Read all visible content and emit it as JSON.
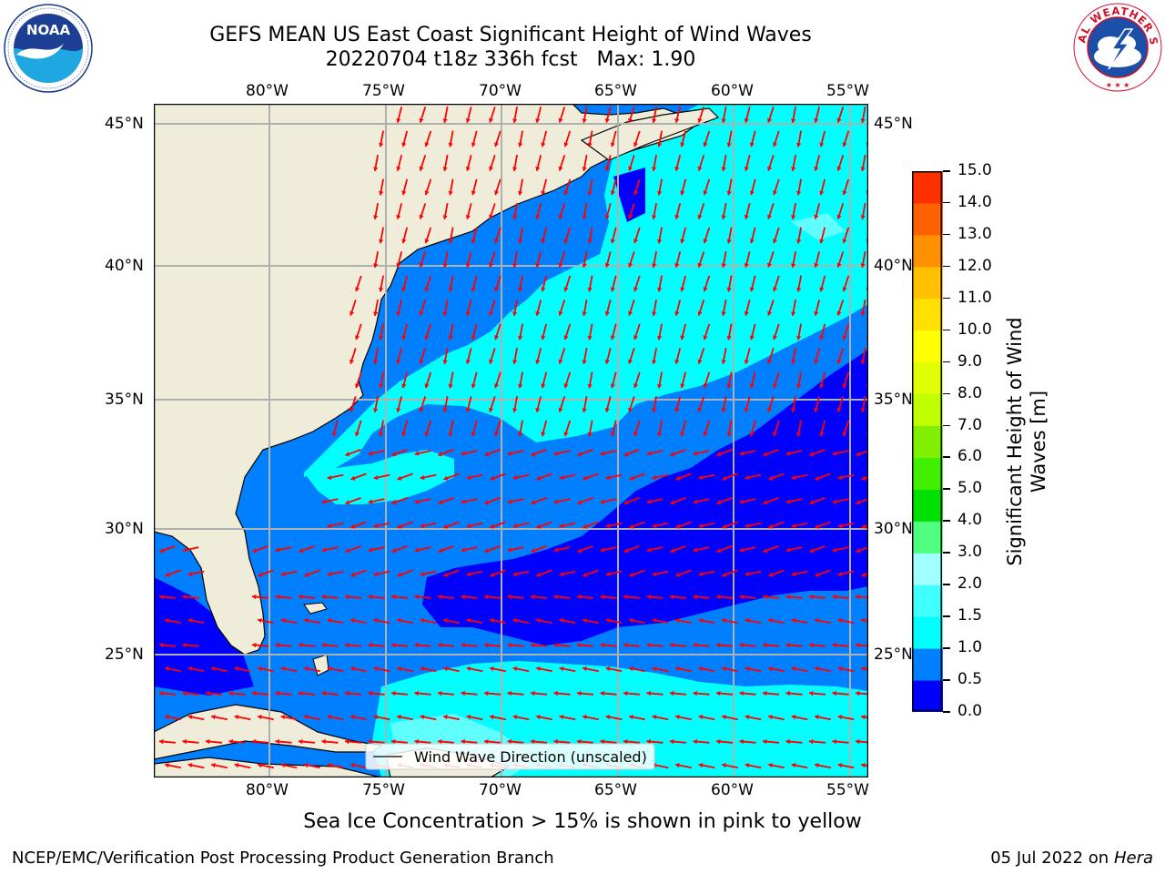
{
  "header": {
    "title_line1": "GEFS MEAN US East Coast Significant Height of Wind Waves",
    "title_line2": "20220704 t18z 336h fcst   Max: 1.90"
  },
  "logos": {
    "left": {
      "text": "NOAA",
      "ring_text": "NATIONAL OCEANIC AND ATMOSPHERIC ADMINISTRATION · U.S. DEPARTMENT OF COMMERCE",
      "icon": "noaa-logo"
    },
    "right": {
      "ring_text": "NATIONAL WEATHER SERVICE",
      "icon": "nws-logo"
    }
  },
  "map": {
    "lon_labels": [
      "80°W",
      "75°W",
      "70°W",
      "65°W",
      "60°W",
      "55°W"
    ],
    "lat_labels": [
      "45°N",
      "40°N",
      "35°N",
      "30°N",
      "25°N"
    ],
    "lon_range": [
      -85,
      -54.4
    ],
    "lat_range": [
      20,
      46
    ],
    "grid": true,
    "legend_label": "Wind Wave Direction (unscaled)",
    "colors": {
      "land": "#efedd9",
      "ocean_low": "#0000ff",
      "ocean_mid": "#0080ff",
      "ocean_high": "#00ffff",
      "arrows": "#ff0000",
      "grid": "#b0b0b0"
    }
  },
  "colorbar": {
    "label": "Significant Height of Wind Waves [m]",
    "ticks": [
      "15.0",
      "14.0",
      "13.0",
      "12.0",
      "11.0",
      "10.0",
      "9.0",
      "8.0",
      "7.0",
      "6.0",
      "5.0",
      "4.0",
      "3.0",
      "2.0",
      "1.5",
      "1.0",
      "0.5",
      "0.0"
    ],
    "colors": [
      "#0000ff",
      "#0080ff",
      "#00ffff",
      "#40ffff",
      "#a0ffff",
      "#50ff80",
      "#00e000",
      "#40f000",
      "#80f000",
      "#c0ff00",
      "#e0ff00",
      "#ffff00",
      "#ffe000",
      "#ffc000",
      "#ff9000",
      "#ff6000",
      "#ff3000"
    ]
  },
  "footer": {
    "subtitle": "Sea Ice Concentration > 15% is shown in pink to yellow",
    "left": "NCEP/EMC/Verification Post Processing Product Generation Branch",
    "right_date": "05 Jul 2022 on",
    "right_host": "Hera"
  }
}
